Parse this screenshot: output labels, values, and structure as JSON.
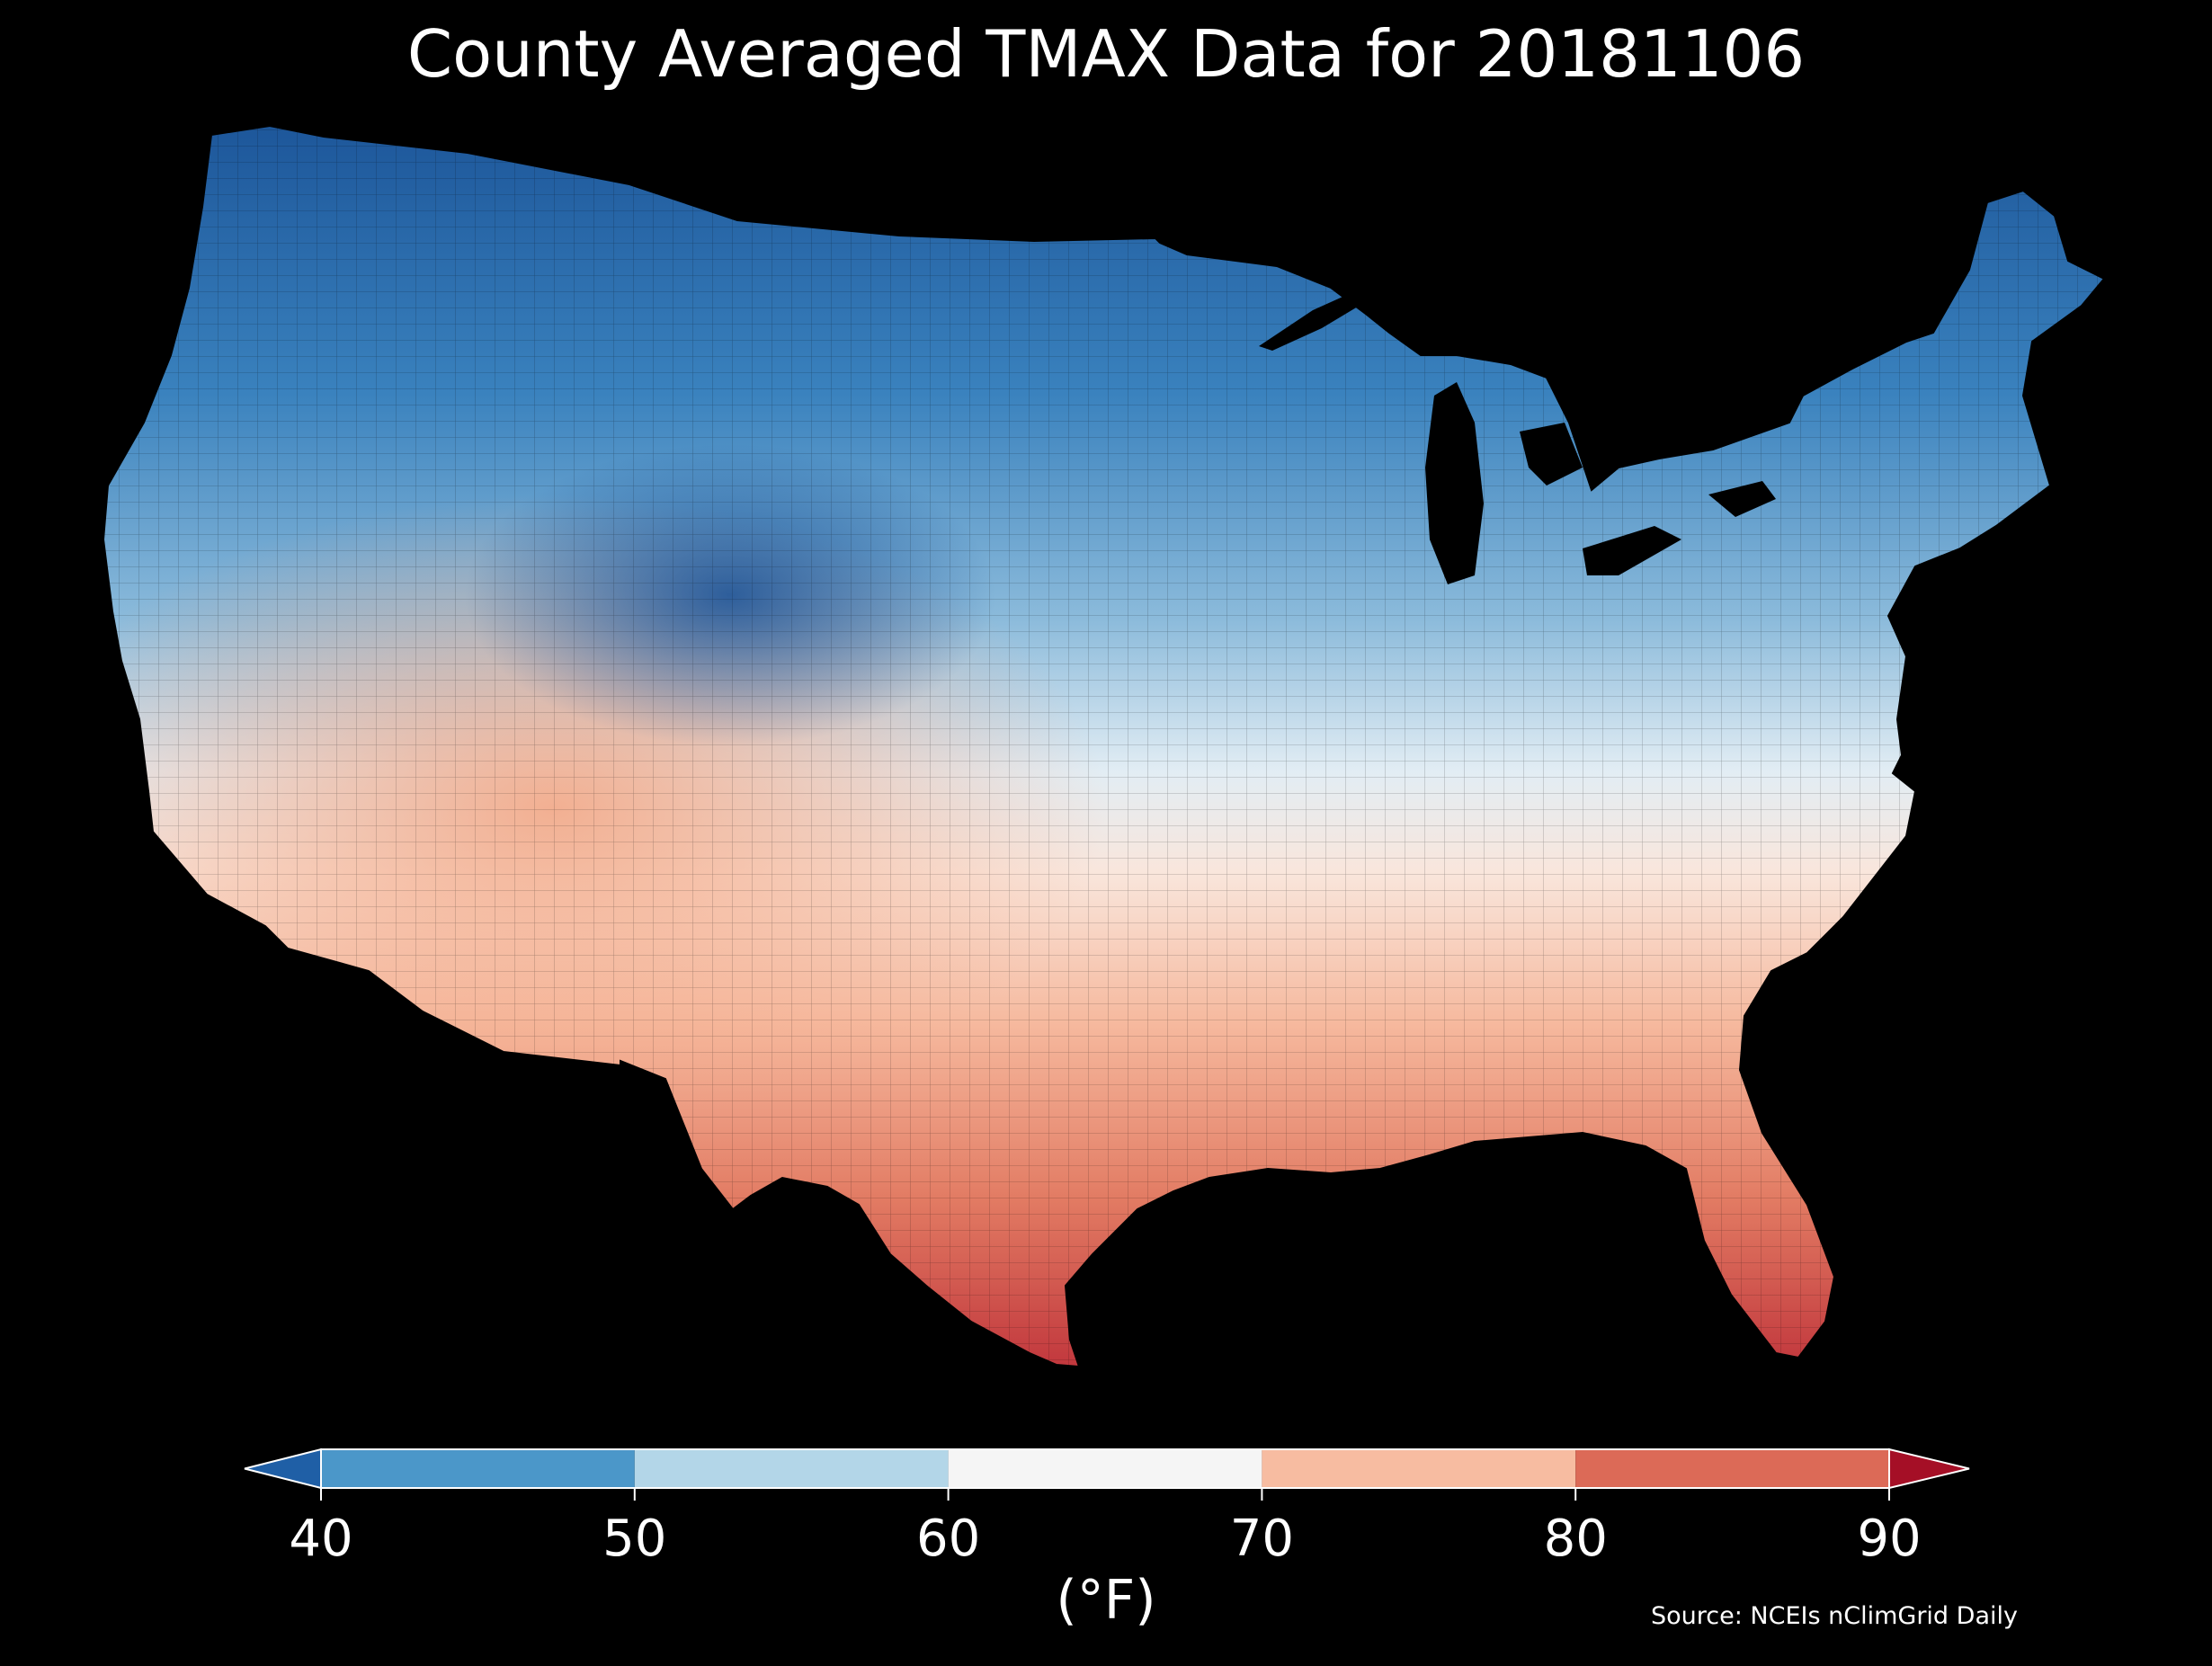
{
  "title": "County Averaged TMAX Data for 20181106",
  "colorbar": {
    "unit_label": "(°F)",
    "ticks": [
      "40",
      "50",
      "60",
      "70",
      "80",
      "90"
    ],
    "bins": [
      {
        "range": "<40",
        "color": "#1f5fa6"
      },
      {
        "range": "40-50",
        "color": "#4b97c9"
      },
      {
        "range": "50-60",
        "color": "#b3d6e8"
      },
      {
        "range": "60-70",
        "color": "#f5f5f5"
      },
      {
        "range": "70-80",
        "color": "#f7bca1"
      },
      {
        "range": "80-90",
        "color": "#dc6a57"
      },
      {
        "range": ">90",
        "color": "#a50f26"
      }
    ]
  },
  "source": "Source: NCEIs nClimGrid Daily",
  "map": {
    "background": "#000000",
    "region": "contiguous United States, county level",
    "pattern": "coldest in northern Plains / Rockies (<40°F), warmest in south Texas and south Florida (80-90°F)"
  }
}
